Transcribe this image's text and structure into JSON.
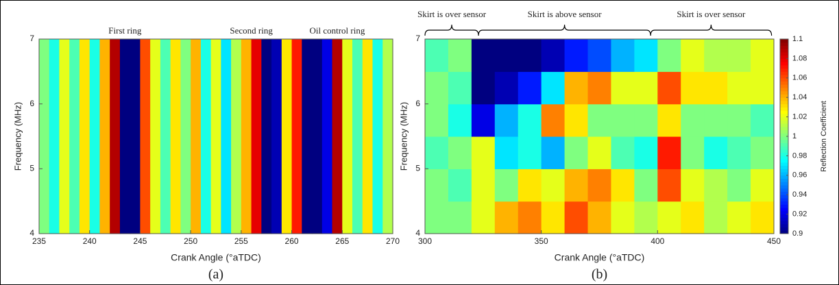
{
  "chart_data": [
    {
      "type": "heatmap",
      "caption": "(a)",
      "xlabel": "Crank Angle (°aTDC)",
      "ylabel": "Frequency (MHz)",
      "xlim": [
        235,
        270
      ],
      "ylim": [
        4,
        7
      ],
      "xticks": [
        235,
        240,
        245,
        250,
        255,
        260,
        265,
        270
      ],
      "yticks": [
        4,
        5,
        6,
        7
      ],
      "colormap": "jet",
      "clim": [
        0.9,
        1.1
      ],
      "annotations": [
        {
          "text": "First ring",
          "x": 243.5
        },
        {
          "text": "Second ring",
          "x": 256
        },
        {
          "text": "Oil control ring",
          "x": 264.5
        }
      ],
      "x": [
        235.5,
        236.5,
        237.5,
        238.5,
        239.5,
        240.5,
        241.5,
        242.5,
        243.5,
        244.5,
        245.5,
        246.5,
        247.5,
        248.5,
        249.5,
        250.5,
        251.5,
        252.5,
        253.5,
        254.5,
        255.5,
        256.5,
        257.5,
        258.5,
        259.5,
        260.5,
        261.5,
        262.5,
        263.5,
        264.5,
        265.5,
        266.5,
        267.5,
        268.5,
        269.5
      ],
      "y": [
        5.5
      ],
      "z": [
        [
          1.0,
          0.98,
          1.02,
          0.99,
          1.03,
          0.98,
          1.04,
          1.09,
          0.9,
          0.9,
          1.06,
          1.02,
          0.99,
          1.03,
          1.0,
          1.04,
          0.98,
          1.02,
          0.97,
          1.01,
          1.04,
          1.08,
          0.9,
          0.91,
          1.03,
          1.07,
          0.9,
          0.9,
          0.92,
          1.09,
          1.02,
          0.99,
          1.03,
          0.98,
          1.01
        ]
      ]
    },
    {
      "type": "heatmap",
      "caption": "(b)",
      "xlabel": "Crank Angle (°aTDC)",
      "ylabel": "Frequency (MHz)",
      "xlim": [
        300,
        450
      ],
      "ylim": [
        4,
        7
      ],
      "xticks": [
        300,
        350,
        400,
        450
      ],
      "yticks": [
        4,
        5,
        6,
        7
      ],
      "colormap": "jet",
      "clim": [
        0.9,
        1.1
      ],
      "colorbar": {
        "label": "Reflection Coefficient",
        "ticks": [
          0.9,
          0.92,
          0.94,
          0.96,
          0.98,
          1,
          1.02,
          1.04,
          1.06,
          1.08,
          1.1
        ]
      },
      "annotations": [
        {
          "text": "Skirt is over sensor",
          "x": [
            300,
            323
          ]
        },
        {
          "text": "Skirt is above sensor",
          "x": [
            323,
            397
          ]
        },
        {
          "text": "Skirt is over sensor",
          "x": [
            397,
            449
          ]
        }
      ],
      "x": [
        305,
        315,
        325,
        335,
        345,
        355,
        365,
        375,
        385,
        395,
        405,
        415,
        425,
        435,
        445
      ],
      "y": [
        4.25,
        4.75,
        5.25,
        5.75,
        6.25,
        6.75
      ],
      "z": [
        [
          1.0,
          1.0,
          1.02,
          1.04,
          1.05,
          1.03,
          1.06,
          1.04,
          1.02,
          1.01,
          1.02,
          1.03,
          1.01,
          1.02,
          1.03
        ],
        [
          1.0,
          0.99,
          1.02,
          1.0,
          1.03,
          1.02,
          1.04,
          1.05,
          1.03,
          1.0,
          1.06,
          1.02,
          1.01,
          1.0,
          1.02
        ],
        [
          0.99,
          1.0,
          1.02,
          0.97,
          0.98,
          0.96,
          1.0,
          1.02,
          0.99,
          0.98,
          1.07,
          1.0,
          0.98,
          0.99,
          1.0
        ],
        [
          1.0,
          0.98,
          0.92,
          0.96,
          0.98,
          1.05,
          1.03,
          1.0,
          1.0,
          1.0,
          1.03,
          1.0,
          1.0,
          1.0,
          0.99
        ],
        [
          1.0,
          0.99,
          0.9,
          0.91,
          0.93,
          0.97,
          1.04,
          1.05,
          1.02,
          1.02,
          1.06,
          1.03,
          1.03,
          1.02,
          1.02
        ],
        [
          0.99,
          1.0,
          0.9,
          0.9,
          0.9,
          0.91,
          0.93,
          0.94,
          0.96,
          0.97,
          1.0,
          1.02,
          1.01,
          1.01,
          1.02
        ]
      ]
    }
  ]
}
